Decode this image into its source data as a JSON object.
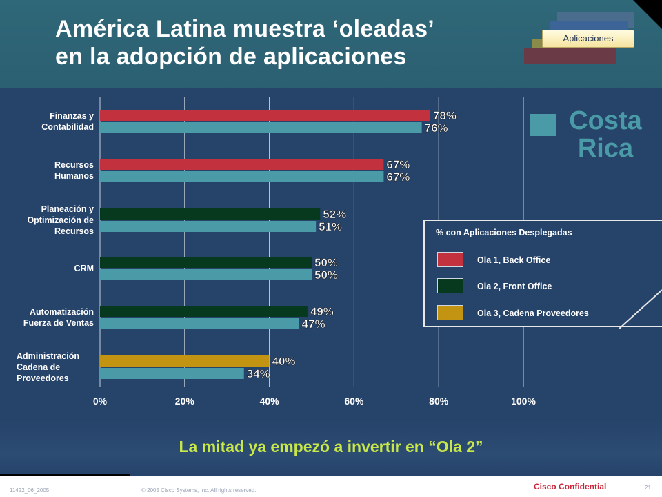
{
  "header": {
    "title_line1": "América Latina muestra ‘oleadas’",
    "title_line2": "en la adopción de aplicaciones",
    "tab_label": "Aplicaciones"
  },
  "country": {
    "line1": "Costa",
    "line2": "Rica",
    "color": "#4a9aa8"
  },
  "legend": {
    "title": "% con Aplicaciones Desplegadas",
    "items": [
      {
        "label": "Ola 1, Back Office",
        "color": "#c1323e"
      },
      {
        "label": "Ola 2, Front Office",
        "color": "#06391d"
      },
      {
        "label": "Ola 3, Cadena Proveedores",
        "color": "#c39412"
      }
    ]
  },
  "conclusion": "La mitad ya empezó a invertir en “Ola 2”",
  "footer": {
    "code": "11422_06_2005",
    "copyright": "© 2005 Cisco Systems, Inc. All rights reserved.",
    "confidential": "Cisco Confidential",
    "page": "21"
  },
  "chart_data": {
    "type": "bar",
    "orientation": "horizontal",
    "categories": [
      [
        "Finanzas y",
        "Contabilidad"
      ],
      [
        "Recursos",
        "Humanos"
      ],
      [
        "Planeación y",
        "Optimización de",
        "Recursos"
      ],
      [
        "CRM"
      ],
      [
        "Automatización",
        "Fuerza de Ventas"
      ],
      [
        "Administración",
        "Cadena de",
        "Proveedores"
      ]
    ],
    "wave_values": [
      78,
      67,
      52,
      50,
      49,
      40
    ],
    "wave_labels": [
      "78%",
      "67%",
      "52%",
      "50%",
      "49%",
      "40%"
    ],
    "wave": [
      1,
      1,
      2,
      2,
      2,
      3
    ],
    "costa_rica_values": [
      76,
      67,
      51,
      50,
      47,
      34
    ],
    "costa_rica_labels": [
      "76%",
      "67%",
      "51%",
      "50%",
      "47%",
      "34%"
    ],
    "xlim": [
      0,
      100
    ],
    "xticks": [
      0,
      20,
      40,
      60,
      80,
      100
    ],
    "xtick_labels": [
      "0%",
      "20%",
      "40%",
      "60%",
      "80%",
      "100%"
    ],
    "grid": true,
    "colors": {
      "wave1": "#c1323e",
      "wave2": "#06391d",
      "wave3": "#c39412",
      "costa_rica": "#4a9aa8"
    }
  }
}
